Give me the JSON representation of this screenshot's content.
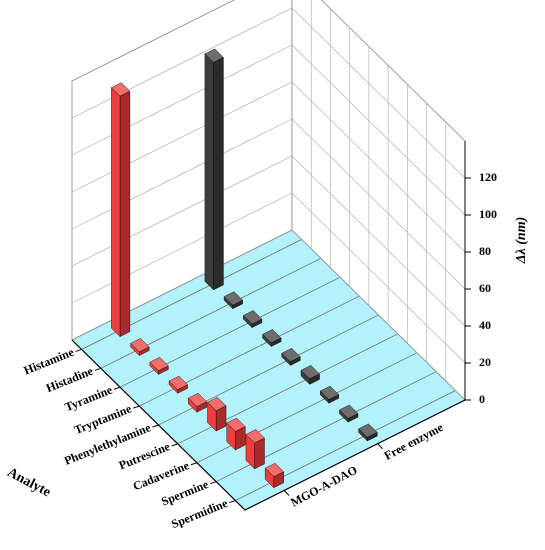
{
  "chart_data": {
    "type": "bar3d",
    "xlabel": "Analyte",
    "zlabel": "Δλ (nm)",
    "categories": [
      "Histamine",
      "Histadine",
      "Tyramine",
      "Tryptamine",
      "Phenylethylamine",
      "Putrescine",
      "Cadaverine",
      "Spermine",
      "Spermidine"
    ],
    "series": [
      {
        "name": "MGO-A-DAO",
        "color": "#f03c3c",
        "values": [
          130,
          2,
          2,
          2,
          3,
          11,
          10,
          14,
          6
        ]
      },
      {
        "name": "Free enzyme",
        "color": "#3c3c3c",
        "values": [
          123,
          2,
          2,
          2,
          2,
          3,
          2,
          2,
          2
        ]
      }
    ],
    "zlim": [
      0,
      140
    ],
    "zticks": [
      0,
      20,
      40,
      60,
      80,
      100,
      120
    ],
    "floor_color": "#b3f2fa",
    "grid": true
  }
}
